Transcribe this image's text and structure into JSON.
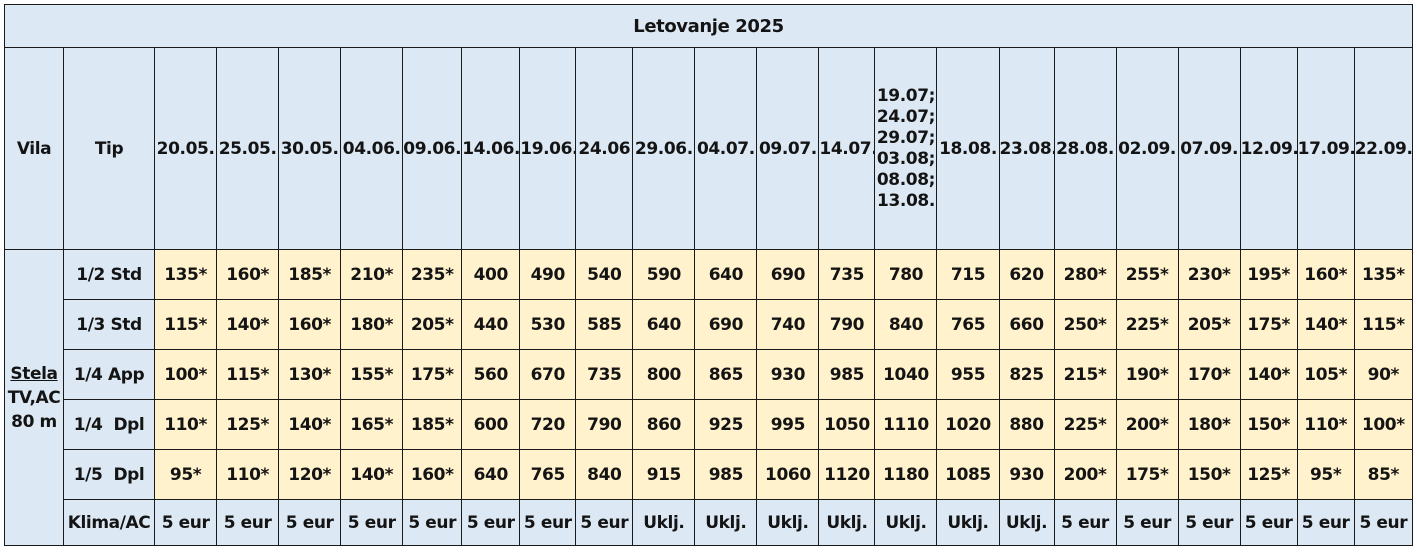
{
  "title": "Letovanje 2025",
  "headers": {
    "vila": "Vila",
    "tip": "Tip",
    "dates": [
      [
        "20.05."
      ],
      [
        "25.05."
      ],
      [
        "30.05."
      ],
      [
        "04.06."
      ],
      [
        "09.06."
      ],
      [
        "14.06."
      ],
      [
        "19.06."
      ],
      [
        "24.06"
      ],
      [
        "29.06."
      ],
      [
        "04.07."
      ],
      [
        "09.07."
      ],
      [
        "14.07."
      ],
      [
        "19.07;",
        "24.07;",
        "29.07;",
        "03.08;",
        "08.08;",
        "13.08."
      ],
      [
        "18.08."
      ],
      [
        "23.08."
      ],
      [
        "28.08."
      ],
      [
        "02.09."
      ],
      [
        "07.09."
      ],
      [
        "12.09."
      ],
      [
        "17.09."
      ],
      [
        "22.09."
      ]
    ]
  },
  "villa": {
    "name": "Stela",
    "features": "TV,AC",
    "size": "80 m"
  },
  "rows": [
    {
      "type": "1/2 Std",
      "prices": [
        "135*",
        "160*",
        "185*",
        "210*",
        "235*",
        "400",
        "490",
        "540",
        "590",
        "640",
        "690",
        "735",
        "780",
        "715",
        "620",
        "280*",
        "255*",
        "230*",
        "195*",
        "160*",
        "135*"
      ]
    },
    {
      "type": "1/3 Std",
      "prices": [
        "115*",
        "140*",
        "160*",
        "180*",
        "205*",
        "440",
        "530",
        "585",
        "640",
        "690",
        "740",
        "790",
        "840",
        "765",
        "660",
        "250*",
        "225*",
        "205*",
        "175*",
        "140*",
        "115*"
      ]
    },
    {
      "type": "1/4 App",
      "prices": [
        "100*",
        "115*",
        "130*",
        "155*",
        "175*",
        "560",
        "670",
        "735",
        "800",
        "865",
        "930",
        "985",
        "1040",
        "955",
        "825",
        "215*",
        "190*",
        "170*",
        "140*",
        "105*",
        "90*"
      ]
    },
    {
      "type": "1/4  Dpl",
      "prices": [
        "110*",
        "125*",
        "140*",
        "165*",
        "185*",
        "600",
        "720",
        "790",
        "860",
        "925",
        "995",
        "1050",
        "1110",
        "1020",
        "880",
        "225*",
        "200*",
        "180*",
        "150*",
        "110*",
        "100*"
      ]
    },
    {
      "type": "1/5  Dpl",
      "prices": [
        "95*",
        "110*",
        "120*",
        "140*",
        "160*",
        "640",
        "765",
        "840",
        "915",
        "985",
        "1060",
        "1120",
        "1180",
        "1085",
        "930",
        "200*",
        "175*",
        "150*",
        "125*",
        "95*",
        "85*"
      ]
    }
  ],
  "ac_row": {
    "label": "Klima/AC",
    "values": [
      "5 eur",
      "5 eur",
      "5 eur",
      "5 eur",
      "5 eur",
      "5 eur",
      "5 eur",
      "5 eur",
      "Uklj.",
      "Uklj.",
      "Uklj.",
      "Uklj.",
      "Uklj.",
      "Uklj.",
      "Uklj.",
      "5 eur",
      "5 eur",
      "5 eur",
      "5 eur",
      "5 eur",
      "5 eur"
    ]
  }
}
